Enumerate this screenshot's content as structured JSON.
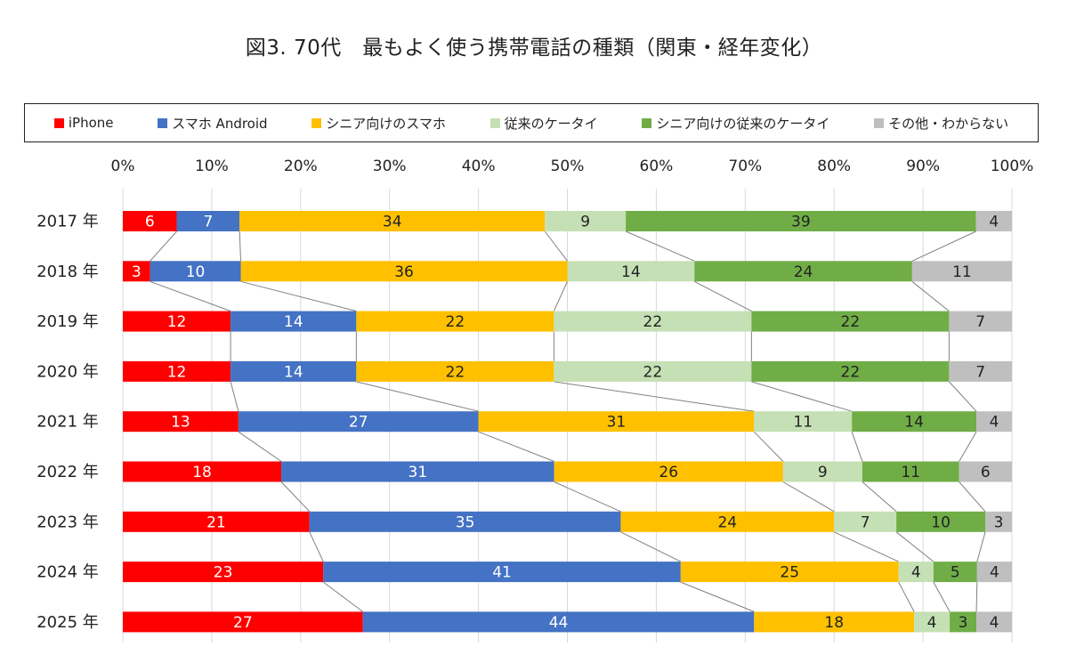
{
  "title": "図3. 70代　最もよく使う携帯電話の種類（関東・経年変化）",
  "colors": {
    "iphone": "#ff0000",
    "android": "#4472c4",
    "senior_smartphone": "#ffc000",
    "feature_phone": "#c5e0b4",
    "senior_feature_phone": "#70ad47",
    "other": "#bfbfbf",
    "connector": "#808080"
  },
  "legend_position": "top",
  "chart_data": {
    "type": "bar",
    "orientation": "horizontal",
    "stacked": true,
    "percent": true,
    "title": "図3. 70代　最もよく使う携帯電話の種類（関東・経年変化）",
    "xlim": [
      0,
      100
    ],
    "x_ticks": [
      "0%",
      "10%",
      "20%",
      "30%",
      "40%",
      "50%",
      "60%",
      "70%",
      "80%",
      "90%",
      "100%"
    ],
    "grid": true,
    "connector_lines": true,
    "categories": [
      "2017 年",
      "2018 年",
      "2019 年",
      "2020 年",
      "2021 年",
      "2022 年",
      "2023 年",
      "2024 年",
      "2025 年"
    ],
    "series": [
      {
        "name": "iPhone",
        "color_key": "iphone",
        "label_color": "#ffffff",
        "values": [
          6,
          3,
          12,
          12,
          13,
          18,
          21,
          23,
          27
        ]
      },
      {
        "name": "スマホ Android",
        "color_key": "android",
        "label_color": "#ffffff",
        "values": [
          7,
          10,
          14,
          14,
          27,
          31,
          35,
          41,
          44
        ]
      },
      {
        "name": "シニア向けのスマホ",
        "color_key": "senior_smartphone",
        "label_color": "#222222",
        "values": [
          34,
          36,
          22,
          22,
          31,
          26,
          24,
          25,
          18
        ]
      },
      {
        "name": "従来のケータイ",
        "color_key": "feature_phone",
        "label_color": "#222222",
        "values": [
          9,
          14,
          22,
          22,
          11,
          9,
          7,
          4,
          4
        ]
      },
      {
        "name": "シニア向けの従来のケータイ",
        "color_key": "senior_feature_phone",
        "label_color": "#222222",
        "values": [
          39,
          24,
          22,
          22,
          14,
          11,
          10,
          5,
          3
        ]
      },
      {
        "name": "その他・わからない",
        "color_key": "other",
        "label_color": "#222222",
        "values": [
          4,
          11,
          7,
          7,
          4,
          6,
          3,
          4,
          4
        ]
      }
    ]
  }
}
